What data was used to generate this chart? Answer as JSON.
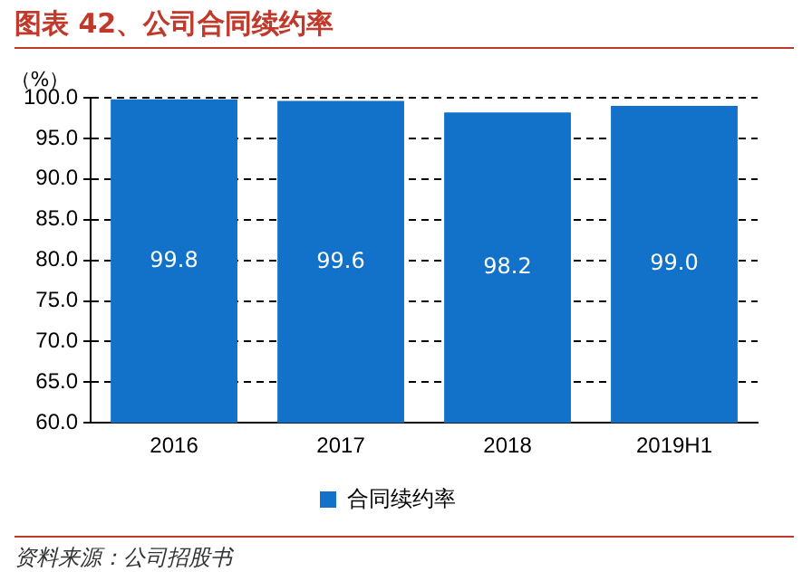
{
  "chart_data": {
    "type": "bar",
    "title": "图表 42、公司合同续约率",
    "ylabel": "（%）",
    "categories": [
      "2016",
      "2017",
      "2018",
      "2019H1"
    ],
    "series": [
      {
        "name": "合同续约率",
        "color": "#1272c9",
        "values": [
          99.8,
          99.6,
          98.2,
          99.0
        ]
      }
    ],
    "value_labels": [
      "99.8",
      "99.6",
      "98.2",
      "99.0"
    ],
    "ylim": [
      60,
      100
    ],
    "yticks": [
      {
        "value": 60,
        "label": "60.0"
      },
      {
        "value": 65,
        "label": "65.0"
      },
      {
        "value": 70,
        "label": "70.0"
      },
      {
        "value": 75,
        "label": "75.0"
      },
      {
        "value": 80,
        "label": "80.0"
      },
      {
        "value": 85,
        "label": "85.0"
      },
      {
        "value": 90,
        "label": "90.0"
      },
      {
        "value": 95,
        "label": "95.0"
      },
      {
        "value": 100,
        "label": "100.0"
      }
    ],
    "grid": "y",
    "legend": "bottom",
    "annotations": [
      "资料来源：公司招股书"
    ]
  }
}
